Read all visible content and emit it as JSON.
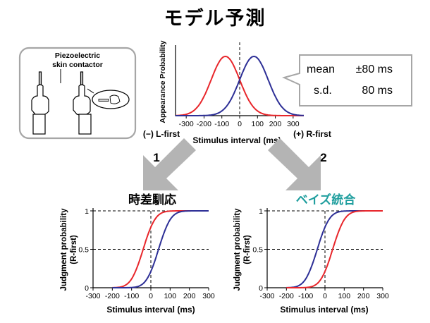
{
  "title": "モデル予測",
  "device": {
    "label_line1": "Piezoelectric",
    "label_line2": "skin contactor"
  },
  "stats_box": {
    "mean_label": "mean",
    "mean_value": "±80 ms",
    "sd_label": "s.d.",
    "sd_value": "80 ms"
  },
  "arrows": {
    "left_number": "1",
    "right_number": "2"
  },
  "colors": {
    "red": "#e8262b",
    "blue": "#2d2f96",
    "teal": "#1f9e9e",
    "arrow_gray": "#b4b4b4",
    "box_border": "#a6a6a6"
  },
  "chart_data": [
    {
      "type": "line",
      "title": "",
      "xlabel": "Stimulus interval (ms)",
      "ylabel": "Appearance Probability",
      "x_ticks": [
        "-300",
        "-200",
        "-100",
        "0",
        "100",
        "200",
        "300"
      ],
      "xlim": [
        -360,
        360
      ],
      "left_end_label": "(−) L-first",
      "right_end_label": "(+) R-first",
      "vertical_dashed_line_x": 0,
      "series": [
        {
          "color": "red",
          "curve": "gaussian",
          "mean": -80,
          "sd": 80
        },
        {
          "color": "blue",
          "curve": "gaussian",
          "mean": 80,
          "sd": 80
        }
      ]
    },
    {
      "type": "line",
      "title": "時差馴応",
      "xlabel": "Stimulus interval (ms)",
      "ylabel": "Judgment probability (R-first)",
      "x_ticks": [
        "-300",
        "-200",
        "-100",
        "0",
        "100",
        "200",
        "300"
      ],
      "y_ticks": [
        "0",
        "0.5",
        "1"
      ],
      "xlim": [
        -300,
        300
      ],
      "ylim": [
        0,
        1
      ],
      "series": [
        {
          "color": "red",
          "curve": "cumulative",
          "pse": -40,
          "sd": 50
        },
        {
          "color": "blue",
          "curve": "cumulative",
          "pse": 40,
          "sd": 50
        }
      ]
    },
    {
      "type": "line",
      "title": "ベイズ統合",
      "xlabel": "Stimulus interval (ms)",
      "ylabel": "Judgment probability (R-first)",
      "x_ticks": [
        "-300",
        "-200",
        "-100",
        "0",
        "100",
        "200",
        "300"
      ],
      "y_ticks": [
        "0",
        "0.5",
        "1"
      ],
      "xlim": [
        -300,
        300
      ],
      "ylim": [
        0,
        1
      ],
      "series": [
        {
          "color": "blue",
          "curve": "cumulative",
          "pse": -40,
          "sd": 50
        },
        {
          "color": "red",
          "curve": "cumulative",
          "pse": 40,
          "sd": 50
        }
      ]
    }
  ]
}
